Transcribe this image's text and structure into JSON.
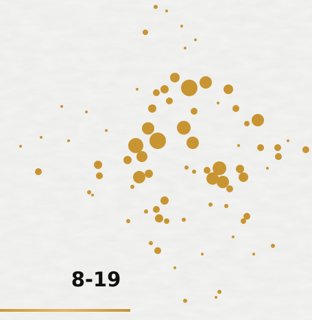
{
  "label": "8-19"
}
